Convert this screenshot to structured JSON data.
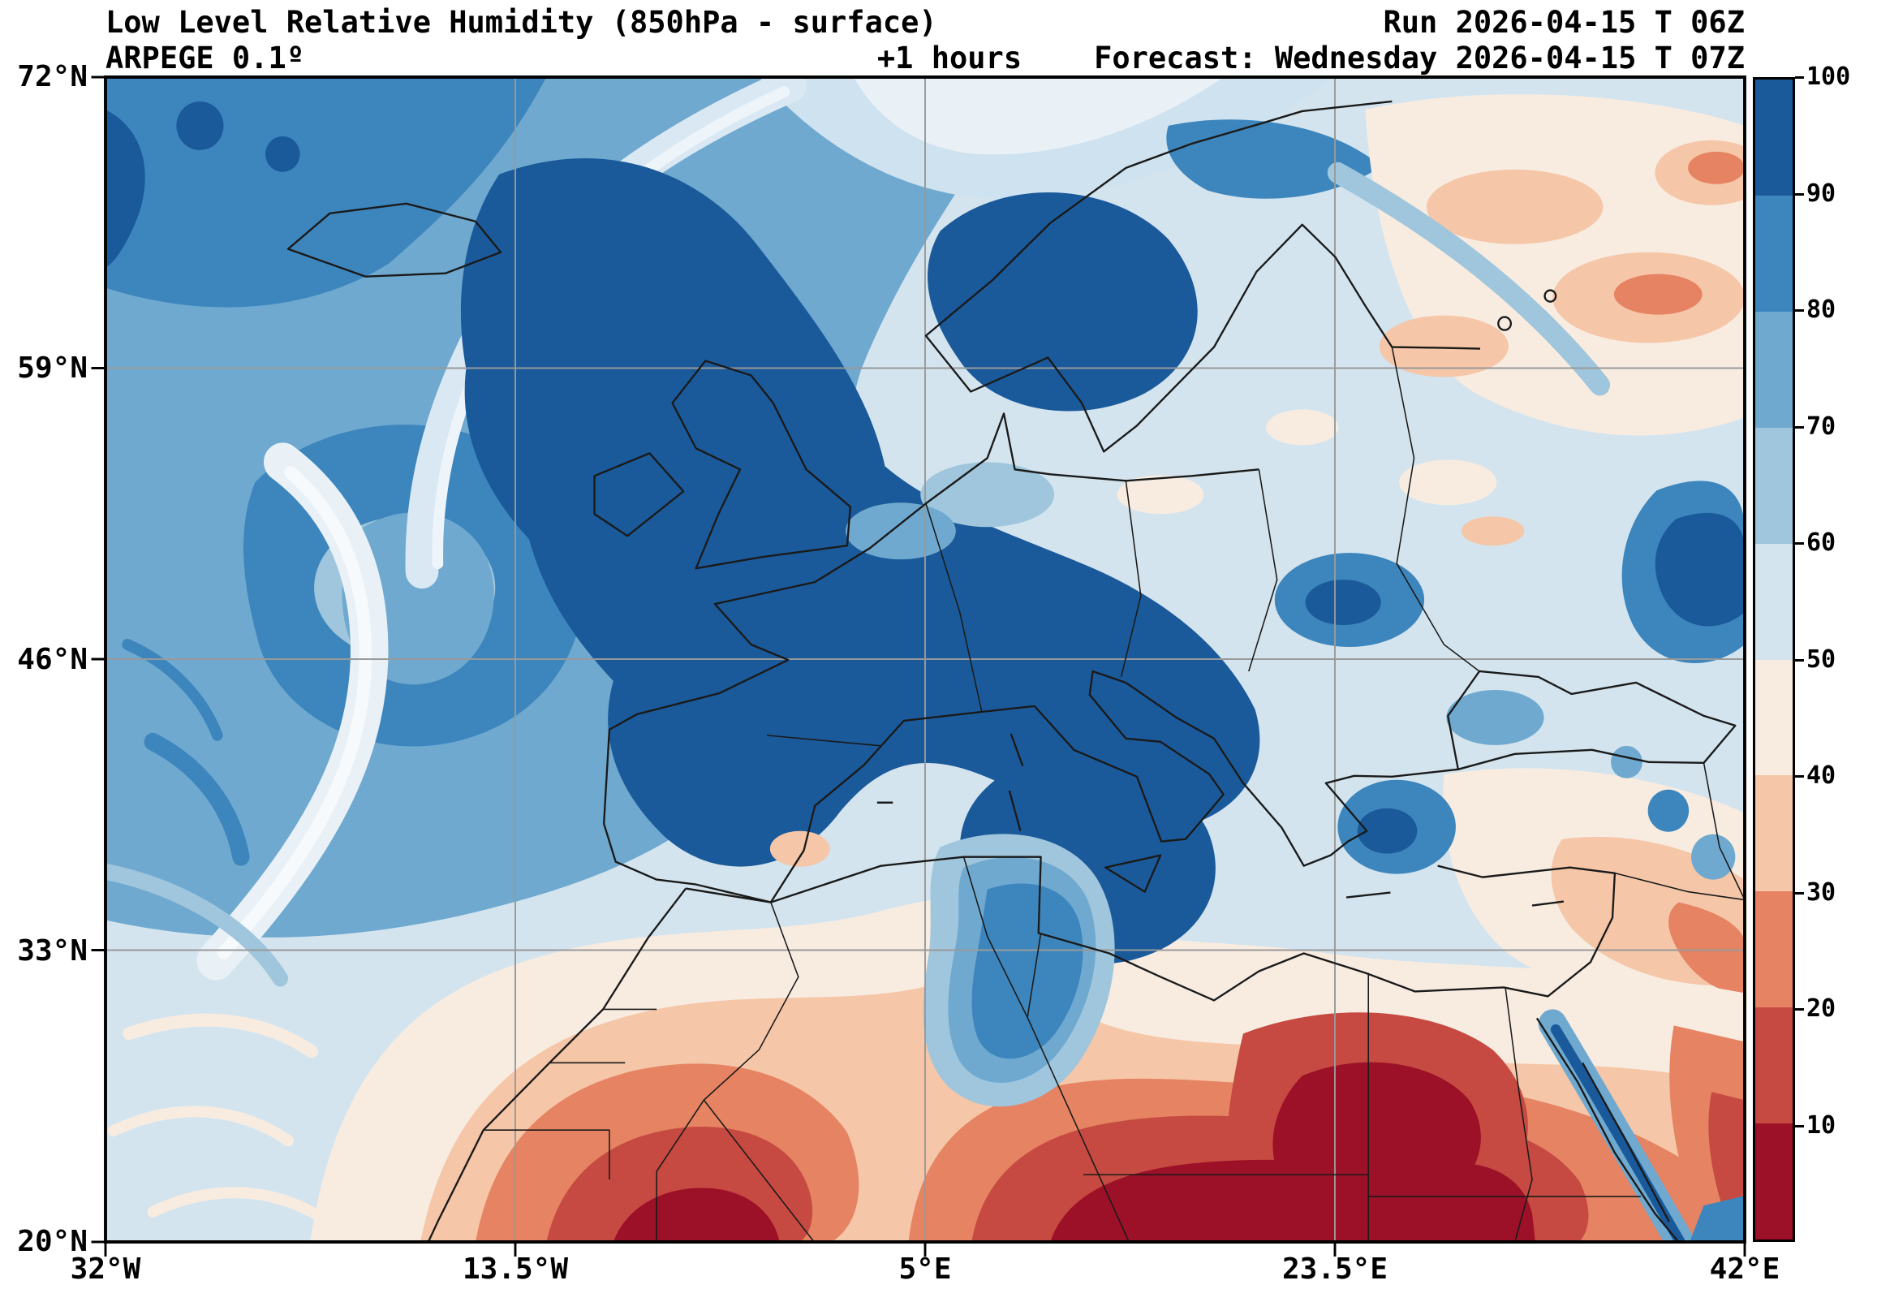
{
  "header": {
    "title": "Low Level Relative Humidity (850hPa - surface)",
    "model": "ARPEGE 0.1º",
    "lead_time": "+1 hours",
    "run_label": "Run 2026-04-15 T 06Z",
    "forecast_label": "Forecast: Wednesday 2026-04-15 T 07Z"
  },
  "axes": {
    "lat_ticks": [
      "72°N",
      "59°N",
      "46°N",
      "33°N",
      "20°N"
    ],
    "lon_ticks": [
      "32°W",
      "13.5°W",
      "5°E",
      "23.5°E",
      "42°E"
    ]
  },
  "colorbar": {
    "ticks": [
      "100",
      "90",
      "80",
      "70",
      "60",
      "50",
      "40",
      "30",
      "20",
      "10"
    ],
    "segments": [
      {
        "label": "90-100",
        "color": "#1a5a9b"
      },
      {
        "label": "80-90",
        "color": "#3d86bd"
      },
      {
        "label": "70-80",
        "color": "#6fa9cf"
      },
      {
        "label": "60-70",
        "color": "#9fc6dd"
      },
      {
        "label": "50-60",
        "color": "#d3e4ee"
      },
      {
        "label": "40-50",
        "color": "#f8ece1"
      },
      {
        "label": "30-40",
        "color": "#f5c6a7"
      },
      {
        "label": "20-30",
        "color": "#e58363"
      },
      {
        "label": "10-20",
        "color": "#c64a41"
      },
      {
        "label": "0-10",
        "color": "#9c1127"
      }
    ]
  },
  "chart_data": {
    "type": "heatmap",
    "title": "Low Level Relative Humidity (850hPa - surface)",
    "units": "%",
    "model": "ARPEGE 0.1º",
    "run": "2026-04-15 06Z",
    "forecast_valid": "Wednesday 2026-04-15 07Z",
    "lead_time": "+1 hours",
    "lon_ticks": [
      "32°W",
      "13.5°W",
      "5°E",
      "23.5°E",
      "42°E"
    ],
    "lat_ticks": [
      "72°N",
      "59°N",
      "46°N",
      "33°N",
      "20°N"
    ],
    "colorbar_ticks": [
      100,
      90,
      80,
      70,
      60,
      50,
      40,
      30,
      20,
      10
    ],
    "palette_high_to_low": [
      "#1a5a9b",
      "#3d86bd",
      "#6fa9cf",
      "#9fc6dd",
      "#d3e4ee",
      "#f8ece1",
      "#f5c6a7",
      "#e58363",
      "#c64a41",
      "#9c1127"
    ],
    "field_summary": "High relative humidity (80-100%, dark blue) over the North Atlantic, Iceland, British Isles, Iberia, the Alps, the Balkans and the central Mediterranean; low relative humidity (0-30%, red) over the Sahara, Libya, Egypt and Arabia; pale mixed values over eastern Europe, western Russia and the Middle East."
  }
}
